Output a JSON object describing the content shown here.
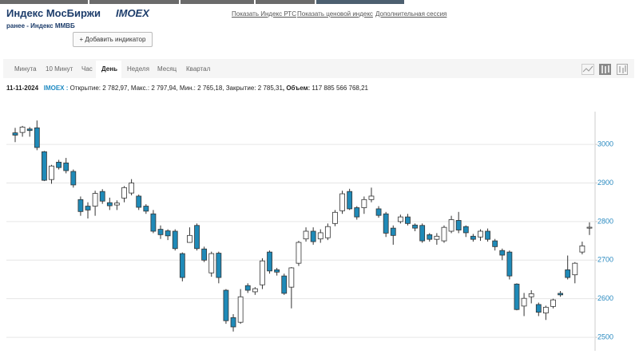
{
  "header": {
    "title": "Индекс МосБиржи",
    "ticker": "IMOEX",
    "subtitle": "ранее - Индекс ММВБ",
    "button": "+ Добавить индикатор"
  },
  "links": [
    "Показать Индекс РТС",
    "Показать ценовой индекс",
    "Дополнительная сессия"
  ],
  "tabs": [
    "Минута",
    "10 Минут",
    "Час",
    "День",
    "Неделя",
    "Месяц",
    "Квартал"
  ],
  "info": {
    "date": "11-11-2024",
    "ticker": "IMOEX :",
    "open_label": "Открытие:",
    "open": "2 782,97",
    "high_label": ", Макс.:",
    "high": "2 797,94",
    "low_label": ", Мин.:",
    "low": "2 765,18",
    "close_label": ", Закрытие:",
    "close": "2 785,31",
    "volume_label": ", Объем:",
    "volume": "117 885 566 768,21"
  },
  "chart_data": {
    "type": "candlestick",
    "up_color": "#ffffff",
    "down_color": "#1f8ab8",
    "grid": true,
    "ylim": [
      2465,
      3085
    ],
    "yticks": [
      2500,
      2600,
      2700,
      2800,
      2900,
      3000
    ],
    "open": [
      3030,
      3031,
      3040,
      3043,
      2981,
      2909,
      2954,
      2952,
      2930,
      2857,
      2840,
      2840,
      2878,
      2849,
      2843,
      2861,
      2874,
      2866,
      2840,
      2820,
      2780,
      2776,
      2775,
      2717,
      2746,
      2790,
      2729,
      2667,
      2718,
      2622,
      2551,
      2539,
      2634,
      2618,
      2636,
      2721,
      2675,
      2659,
      2630,
      2692,
      2755,
      2775,
      2755,
      2758,
      2795,
      2828,
      2878,
      2836,
      2836,
      2857,
      2833,
      2820,
      2783,
      2800,
      2812,
      2791,
      2790,
      2766,
      2754,
      2750,
      2775,
      2803,
      2787,
      2762,
      2760,
      2775,
      2750,
      2725,
      2721,
      2638,
      2581,
      2605,
      2585,
      2563,
      2580,
      2614,
      2675,
      2662,
      2721,
      2782.97
    ],
    "high": [
      3043,
      3048,
      3045,
      3062,
      2983,
      2947,
      2960,
      2965,
      2935,
      2865,
      2850,
      2880,
      2884,
      2862,
      2855,
      2892,
      2910,
      2870,
      2845,
      2830,
      2790,
      2780,
      2780,
      2720,
      2785,
      2795,
      2735,
      2722,
      2722,
      2625,
      2560,
      2625,
      2640,
      2630,
      2705,
      2725,
      2680,
      2665,
      2682,
      2750,
      2785,
      2785,
      2780,
      2795,
      2830,
      2880,
      2885,
      2840,
      2865,
      2888,
      2840,
      2825,
      2790,
      2818,
      2820,
      2795,
      2795,
      2770,
      2770,
      2790,
      2815,
      2825,
      2790,
      2768,
      2780,
      2782,
      2755,
      2730,
      2725,
      2640,
      2615,
      2622,
      2590,
      2582,
      2600,
      2620,
      2712,
      2695,
      2748,
      2797.94
    ],
    "low": [
      3006,
      3020,
      3020,
      2985,
      2905,
      2898,
      2935,
      2925,
      2888,
      2815,
      2808,
      2815,
      2846,
      2830,
      2830,
      2850,
      2868,
      2830,
      2820,
      2770,
      2755,
      2752,
      2725,
      2645,
      2745,
      2725,
      2695,
      2657,
      2640,
      2535,
      2515,
      2535,
      2615,
      2610,
      2625,
      2665,
      2660,
      2610,
      2575,
      2685,
      2748,
      2740,
      2745,
      2752,
      2788,
      2820,
      2830,
      2805,
      2820,
      2850,
      2810,
      2760,
      2740,
      2795,
      2790,
      2775,
      2745,
      2748,
      2740,
      2745,
      2770,
      2770,
      2760,
      2748,
      2750,
      2748,
      2725,
      2700,
      2650,
      2570,
      2555,
      2588,
      2555,
      2545,
      2575,
      2605,
      2650,
      2640,
      2715,
      2765.18
    ],
    "close": [
      3024,
      3045,
      3036,
      2992,
      2907,
      2944,
      2940,
      2932,
      2895,
      2826,
      2830,
      2873,
      2853,
      2841,
      2848,
      2888,
      2900,
      2837,
      2827,
      2775,
      2766,
      2763,
      2730,
      2655,
      2764,
      2730,
      2700,
      2717,
      2655,
      2543,
      2527,
      2605,
      2622,
      2626,
      2698,
      2672,
      2669,
      2614,
      2680,
      2746,
      2775,
      2748,
      2771,
      2787,
      2824,
      2872,
      2833,
      2812,
      2857,
      2866,
      2816,
      2770,
      2764,
      2812,
      2795,
      2783,
      2750,
      2754,
      2762,
      2785,
      2805,
      2778,
      2771,
      2754,
      2775,
      2754,
      2735,
      2713,
      2659,
      2572,
      2601,
      2613,
      2565,
      2578,
      2597,
      2610,
      2655,
      2692,
      2737,
      2785.31
    ]
  }
}
